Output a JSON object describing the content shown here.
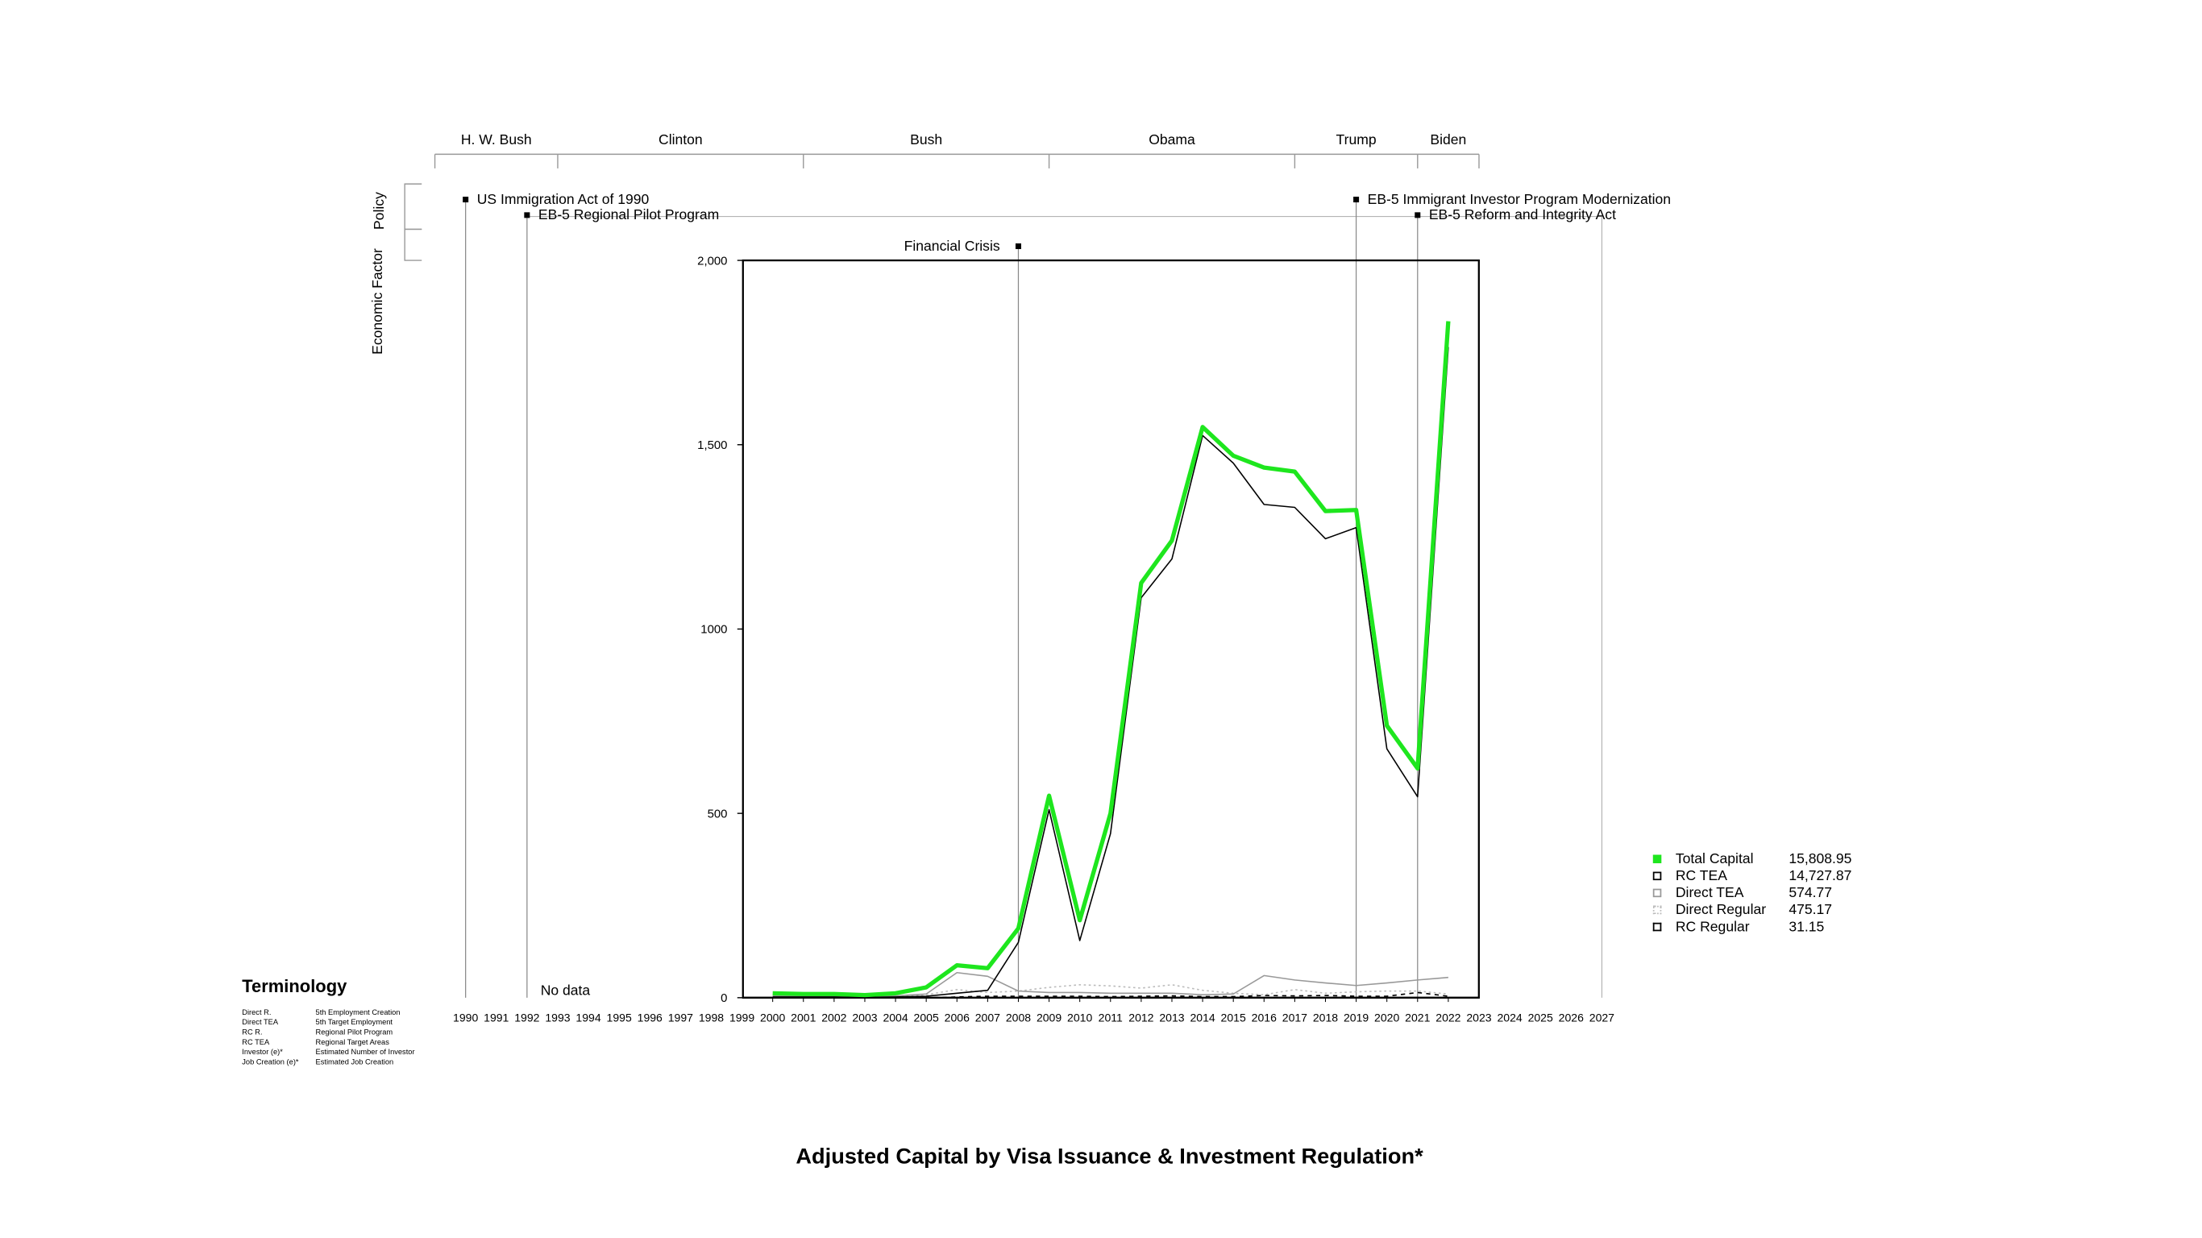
{
  "chart_data": {
    "type": "line",
    "title": "Adjusted Capital by Visa Issuance & Investment Regulation*",
    "xlabel": "",
    "ylabel": "",
    "x_axis_years": [
      1990,
      1991,
      1992,
      1993,
      1994,
      1995,
      1996,
      1997,
      1998,
      1999,
      2000,
      2001,
      2002,
      2003,
      2004,
      2005,
      2006,
      2007,
      2008,
      2009,
      2010,
      2011,
      2012,
      2013,
      2014,
      2015,
      2016,
      2017,
      2018,
      2019,
      2020,
      2021,
      2022,
      2023,
      2024,
      2025,
      2026,
      2027
    ],
    "x": [
      2000,
      2001,
      2002,
      2003,
      2004,
      2005,
      2006,
      2007,
      2008,
      2009,
      2010,
      2011,
      2012,
      2013,
      2014,
      2015,
      2016,
      2017,
      2018,
      2019,
      2020,
      2021,
      2022
    ],
    "ylim": [
      0,
      2000
    ],
    "yticks": [
      0,
      500,
      1000,
      1500,
      2000
    ],
    "ytick_labels": [
      "0",
      "500",
      "1000",
      "1,500",
      "2,000"
    ],
    "grid": false,
    "legend_position": "right",
    "no_data_label": "No data",
    "series": [
      {
        "name": "Total Capital",
        "color": "#1ee61e",
        "values": [
          12,
          10,
          10,
          7,
          12,
          28,
          88,
          80,
          188,
          548,
          210,
          500,
          1125,
          1240,
          1548,
          1470,
          1438,
          1427,
          1320,
          1323,
          738,
          622,
          1835
        ]
      },
      {
        "name": "RC TEA",
        "color": "#000000",
        "values": [
          2,
          2,
          2,
          1,
          2,
          4,
          12,
          20,
          150,
          510,
          155,
          445,
          1085,
          1190,
          1525,
          1450,
          1338,
          1330,
          1245,
          1275,
          675,
          545,
          1765
        ]
      },
      {
        "name": "Direct TEA",
        "color": "#999999",
        "values": [
          5,
          4,
          4,
          3,
          5,
          10,
          68,
          58,
          18,
          14,
          14,
          12,
          12,
          12,
          8,
          10,
          60,
          48,
          40,
          33,
          40,
          48,
          55
        ]
      },
      {
        "name": "Direct Regular",
        "color": "#c0c0c0",
        "values": [
          4,
          3,
          3,
          2,
          4,
          8,
          22,
          14,
          18,
          28,
          35,
          32,
          26,
          35,
          20,
          12,
          8,
          22,
          12,
          16,
          18,
          18,
          10
        ]
      },
      {
        "name": "RC Regular",
        "color": "#000000",
        "values": [
          0,
          0,
          0,
          0,
          0,
          0,
          2,
          4,
          4,
          4,
          4,
          3,
          4,
          5,
          3,
          3,
          6,
          5,
          6,
          4,
          4,
          14,
          4
        ]
      }
    ],
    "legend_values": [
      "15,808.95",
      "14,727.87",
      "574.77",
      "475.17",
      "31.15"
    ],
    "presidents": [
      {
        "name": "H. W. Bush",
        "start": 1989,
        "end": 1993
      },
      {
        "name": "Clinton",
        "start": 1993,
        "end": 2001
      },
      {
        "name": "Bush",
        "start": 2001,
        "end": 2009
      },
      {
        "name": "Obama",
        "start": 2009,
        "end": 2017
      },
      {
        "name": "Trump",
        "start": 2017,
        "end": 2021
      },
      {
        "name": "Biden",
        "start": 2021,
        "end": 2023
      }
    ],
    "side_labels": [
      "Policy",
      "Economic Factor"
    ],
    "events": [
      {
        "label": "US Immigration Act of 1990",
        "year": 1990,
        "kind": "policy",
        "row": 1
      },
      {
        "label": "EB-5 Regional Pilot Program",
        "year": 1992,
        "kind": "policy",
        "row": 2
      },
      {
        "label": "EB-5 Immigrant Investor Program Modernization",
        "year": 2019,
        "kind": "policy",
        "row": 1
      },
      {
        "label": "EB-5 Reform and Integrity Act",
        "year": 2021,
        "kind": "policy",
        "row": 2
      },
      {
        "label": "Financial Crisis",
        "year": 2008,
        "kind": "economic",
        "row": 3
      }
    ]
  },
  "terminology": {
    "title": "Terminology",
    "entries": [
      {
        "key": "Direct R.",
        "value": "5th Employment Creation"
      },
      {
        "key": "Direct TEA",
        "value": "5th Target Employment"
      },
      {
        "key": "RC R.",
        "value": "Regional Pilot Program"
      },
      {
        "key": "RC TEA",
        "value": "Regional Target Areas"
      },
      {
        "key": "Investor (e)*",
        "value": "Estimated Number of Investor"
      },
      {
        "key": "Job Creation (e)*",
        "value": "Estimated Job Creation"
      }
    ]
  }
}
